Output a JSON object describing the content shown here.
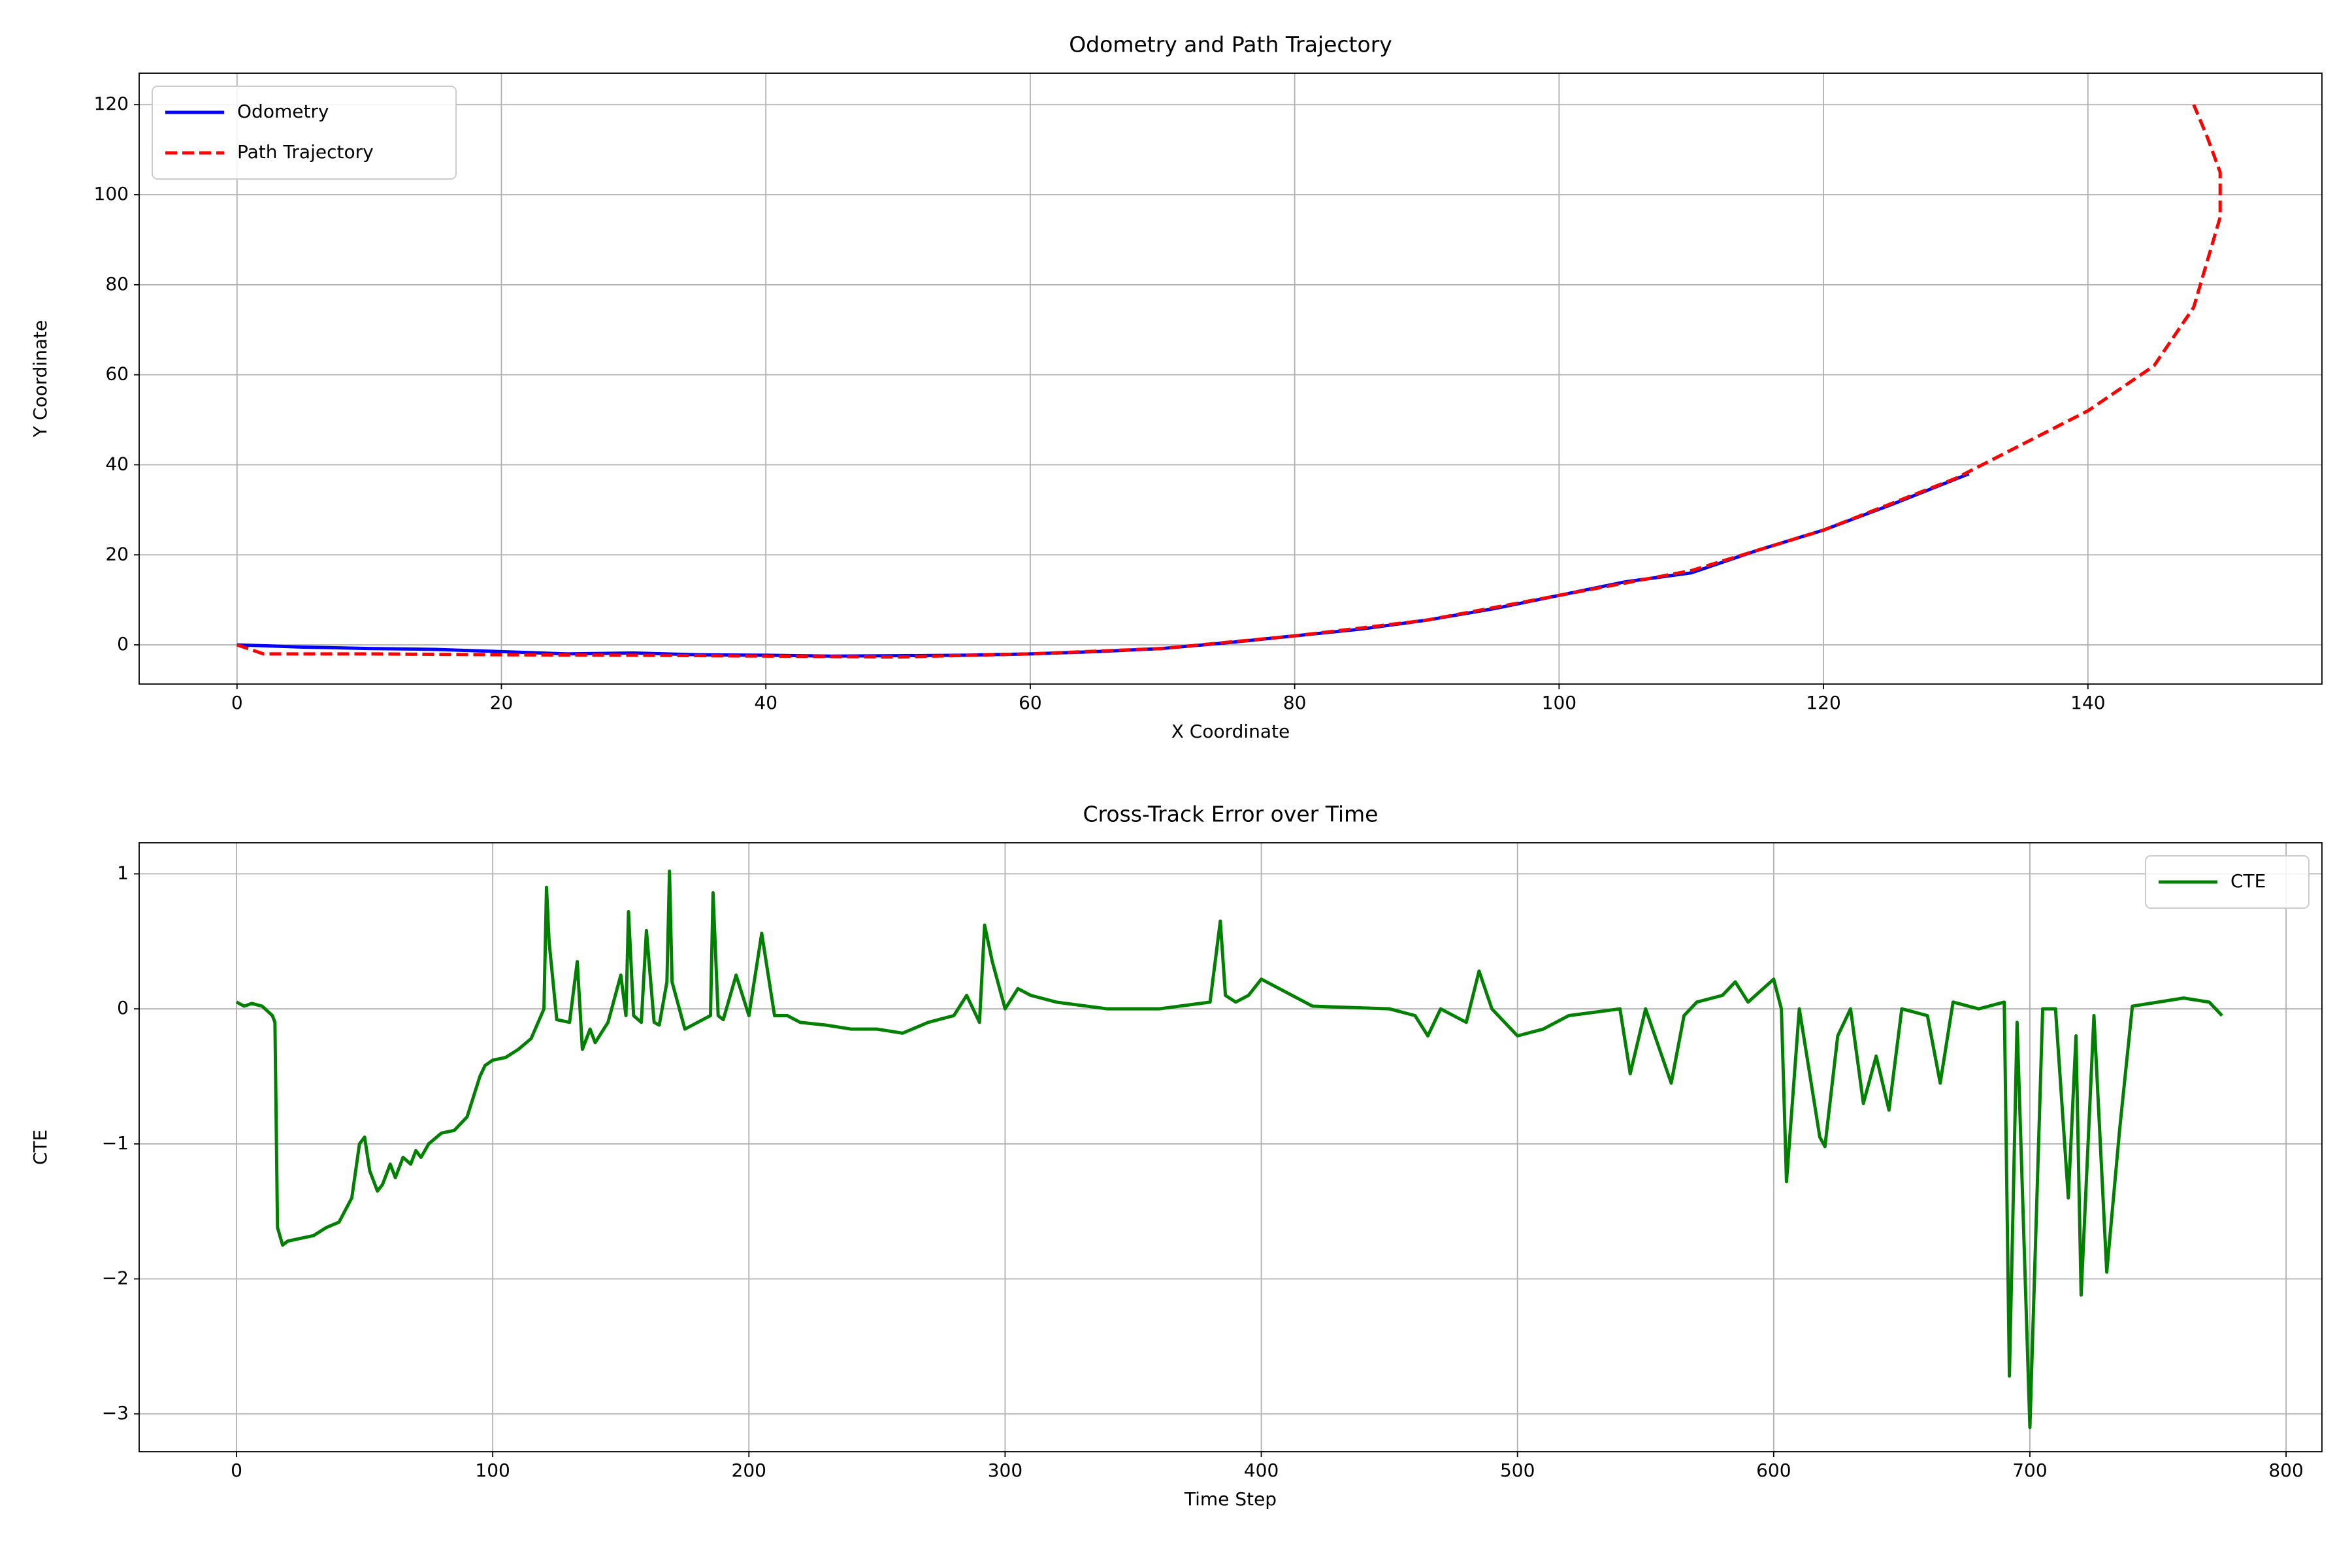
{
  "chart_data": [
    {
      "type": "line",
      "title": "Odometry and Path Trajectory",
      "xlabel": "X Coordinate",
      "ylabel": "Y Coordinate",
      "xlim": [
        -7.4,
        157.7
      ],
      "ylim": [
        -8.7,
        127
      ],
      "xticks": [
        0,
        20,
        40,
        60,
        80,
        100,
        120,
        140
      ],
      "yticks": [
        0,
        20,
        40,
        60,
        80,
        100,
        120
      ],
      "grid": true,
      "legend": "upper left",
      "series": [
        {
          "name": "Odometry",
          "color": "#0000ff",
          "linestyle": "solid",
          "x": [
            0,
            5,
            10,
            15,
            20,
            25,
            30,
            35,
            40,
            45,
            50,
            55,
            60,
            65,
            70,
            75,
            80,
            85,
            90,
            95,
            100,
            105,
            110,
            115,
            120,
            125,
            131
          ],
          "values": [
            0,
            -0.5,
            -0.8,
            -1,
            -1.5,
            -2,
            -1.8,
            -2.2,
            -2.3,
            -2.5,
            -2.4,
            -2.3,
            -2,
            -1.5,
            -0.8,
            0.5,
            2,
            3.5,
            5.5,
            8,
            11,
            14,
            16,
            21,
            25.5,
            31,
            38
          ]
        },
        {
          "name": "Path Trajectory",
          "color": "#ff0000",
          "linestyle": "dashed",
          "x": [
            0,
            2,
            10,
            20,
            30,
            40,
            50,
            60,
            70,
            80,
            90,
            100,
            110,
            120,
            130,
            140,
            145,
            148,
            150,
            150,
            149,
            148
          ],
          "values": [
            0,
            -2,
            -2,
            -2.2,
            -2.3,
            -2.5,
            -2.7,
            -2,
            -0.8,
            2,
            5.5,
            11,
            16.5,
            25.5,
            37,
            52,
            62,
            75,
            95,
            105,
            113,
            120
          ]
        }
      ]
    },
    {
      "type": "line",
      "title": "Cross-Track Error over Time",
      "xlabel": "Time Step",
      "ylabel": "CTE",
      "xlim": [
        -38,
        814
      ],
      "ylim": [
        -3.28,
        1.23
      ],
      "xticks": [
        0,
        100,
        200,
        300,
        400,
        500,
        600,
        700,
        800
      ],
      "yticks": [
        {
          "value": -3,
          "label": "−3"
        },
        {
          "value": -2,
          "label": "−2"
        },
        {
          "value": -1,
          "label": "−1"
        },
        0,
        1
      ],
      "grid": true,
      "legend": "upper right",
      "series": [
        {
          "name": "CTE",
          "color": "#008000",
          "linestyle": "solid",
          "x": [
            0,
            3,
            6,
            10,
            14,
            15,
            16,
            18,
            20,
            25,
            30,
            35,
            40,
            45,
            48,
            50,
            52,
            55,
            57,
            60,
            62,
            65,
            68,
            70,
            72,
            75,
            80,
            85,
            90,
            95,
            97,
            100,
            105,
            110,
            115,
            120,
            121,
            122,
            125,
            130,
            133,
            135,
            138,
            140,
            145,
            150,
            152,
            153,
            155,
            158,
            160,
            163,
            165,
            168,
            169,
            170,
            175,
            180,
            185,
            186,
            188,
            190,
            195,
            200,
            205,
            210,
            215,
            220,
            230,
            240,
            250,
            260,
            270,
            280,
            285,
            290,
            292,
            295,
            300,
            305,
            310,
            320,
            340,
            360,
            380,
            384,
            386,
            390,
            395,
            400,
            420,
            450,
            460,
            465,
            470,
            480,
            485,
            490,
            500,
            510,
            520,
            540,
            544,
            550,
            560,
            565,
            570,
            580,
            585,
            590,
            600,
            603,
            605,
            610,
            618,
            620,
            625,
            630,
            635,
            640,
            645,
            650,
            660,
            665,
            670,
            680,
            690,
            692,
            695,
            700,
            705,
            710,
            715,
            718,
            720,
            725,
            730,
            735,
            740,
            750,
            760,
            770,
            775
          ],
          "values": [
            0.05,
            0.02,
            0.04,
            0.02,
            -0.05,
            -0.1,
            -1.62,
            -1.75,
            -1.72,
            -1.7,
            -1.68,
            -1.62,
            -1.58,
            -1.4,
            -1.0,
            -0.95,
            -1.2,
            -1.35,
            -1.3,
            -1.15,
            -1.25,
            -1.1,
            -1.15,
            -1.05,
            -1.1,
            -1.0,
            -0.92,
            -0.9,
            -0.8,
            -0.5,
            -0.42,
            -0.38,
            -0.36,
            -0.3,
            -0.22,
            0.0,
            0.9,
            0.5,
            -0.08,
            -0.1,
            0.35,
            -0.3,
            -0.15,
            -0.25,
            -0.1,
            0.25,
            -0.05,
            0.72,
            -0.05,
            -0.1,
            0.58,
            -0.1,
            -0.12,
            0.2,
            1.02,
            0.2,
            -0.15,
            -0.1,
            -0.05,
            0.86,
            -0.05,
            -0.08,
            0.25,
            -0.05,
            0.56,
            -0.05,
            -0.05,
            -0.1,
            -0.12,
            -0.15,
            -0.15,
            -0.18,
            -0.1,
            -0.05,
            0.1,
            -0.1,
            0.62,
            0.35,
            0.0,
            0.15,
            0.1,
            0.05,
            0.0,
            0.0,
            0.05,
            0.65,
            0.1,
            0.05,
            0.1,
            0.22,
            0.02,
            0.0,
            -0.05,
            -0.2,
            0.0,
            -0.1,
            0.28,
            0.0,
            -0.2,
            -0.15,
            -0.05,
            0.0,
            -0.48,
            0.0,
            -0.55,
            -0.05,
            0.05,
            0.1,
            0.2,
            0.05,
            0.22,
            0.0,
            -1.28,
            0.0,
            -0.95,
            -1.02,
            -0.2,
            0.0,
            -0.7,
            -0.35,
            -0.75,
            0.0,
            -0.05,
            -0.55,
            0.05,
            0.0,
            0.05,
            -2.72,
            -0.1,
            -3.1,
            0.0,
            0.0,
            -1.4,
            -0.2,
            -2.12,
            -0.05,
            -1.95,
            -0.9,
            0.02,
            0.05,
            0.08,
            0.05,
            -0.05
          ]
        }
      ]
    }
  ]
}
